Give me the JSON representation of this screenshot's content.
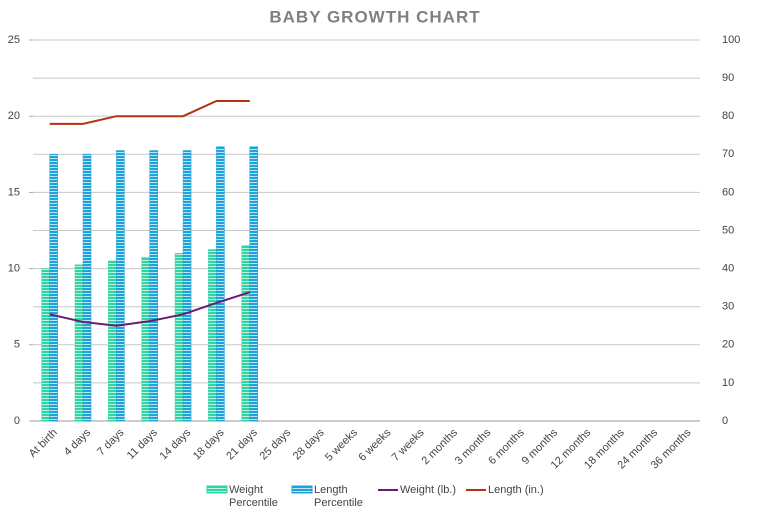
{
  "chart_data": {
    "type": "bar",
    "title": "BABY GROWTH  CHART",
    "categories": [
      "At birth",
      "4 days",
      "7 days",
      "11 days",
      "14 days",
      "18 days",
      "21 days",
      "25 days",
      "28 days",
      "5 weeks",
      "6 weeks",
      "7 weeks",
      "2 months",
      "3 months",
      "6 months",
      "9 months",
      "12 months",
      "18 months",
      "24 months",
      "36 months"
    ],
    "series": [
      {
        "name": "Weight Percentile",
        "color": "#2fd3a4",
        "axis": "y2",
        "values": [
          40,
          41,
          42,
          43,
          44,
          45,
          46,
          null,
          null,
          null,
          null,
          null,
          null,
          null,
          null,
          null,
          null,
          null,
          null,
          null
        ]
      },
      {
        "name": "Length Percentile",
        "color": "#1ea3d8",
        "axis": "y2",
        "values": [
          70,
          70,
          71,
          71,
          71,
          72,
          72,
          null,
          null,
          null,
          null,
          null,
          null,
          null,
          null,
          null,
          null,
          null,
          null,
          null
        ]
      },
      {
        "name": "Weight (lb.)",
        "color": "#6b1a70",
        "type": "line",
        "values": [
          7,
          6.5,
          6.25,
          6.55,
          7,
          7.75,
          8.45,
          null,
          null,
          null,
          null,
          null,
          null,
          null,
          null,
          null,
          null,
          null,
          null,
          null
        ]
      },
      {
        "name": "Length (in.)",
        "color": "#b2330f",
        "type": "line",
        "values": [
          19.5,
          19.5,
          20,
          20,
          20,
          21,
          21,
          null,
          null,
          null,
          null,
          null,
          null,
          null,
          null,
          null,
          null,
          null,
          null,
          null
        ]
      }
    ],
    "ylim": [
      0,
      25
    ],
    "yticks": [
      0,
      5,
      10,
      15,
      20,
      25
    ],
    "y2lim": [
      0,
      100
    ],
    "y2ticks": [
      0,
      10,
      20,
      30,
      40,
      50,
      60,
      70,
      80,
      90,
      100
    ],
    "grid": true,
    "legend": "bottom"
  }
}
